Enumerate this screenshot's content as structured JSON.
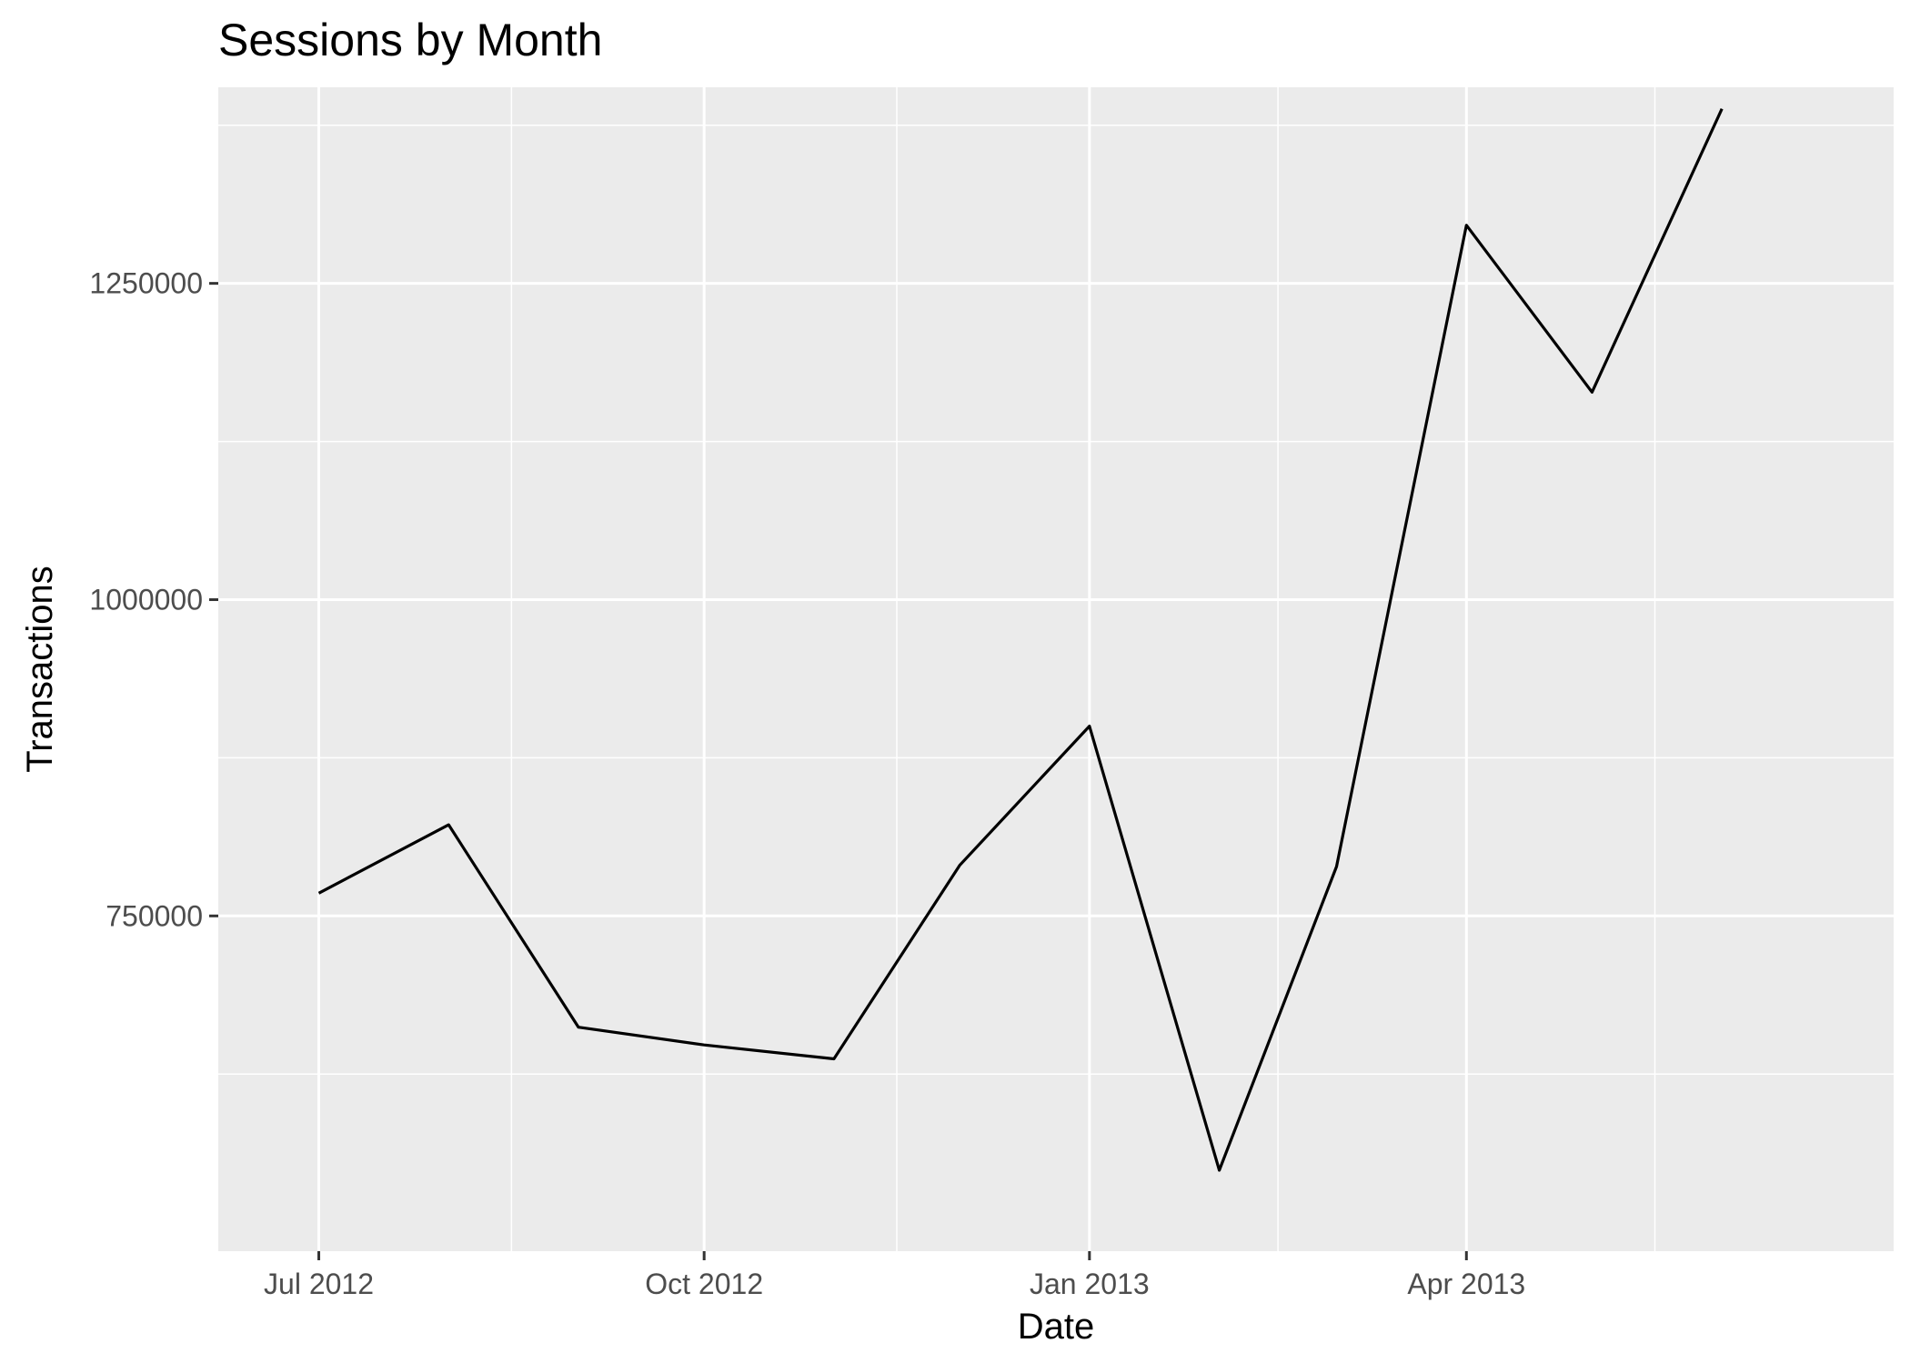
{
  "chart_data": {
    "type": "line",
    "title": "Sessions by Month",
    "xlabel": "Date",
    "ylabel": "Transactions",
    "x_ticks": [
      {
        "date": "2012-07-01",
        "label": "Jul 2012"
      },
      {
        "date": "2012-10-01",
        "label": "Oct 2012"
      },
      {
        "date": "2013-01-01",
        "label": "Jan 2013"
      },
      {
        "date": "2013-04-01",
        "label": "Apr 2013"
      }
    ],
    "y_ticks": [
      750000,
      1000000,
      1250000
    ],
    "xlim": [
      "2012-06-07",
      "2013-07-12"
    ],
    "ylim": [
      485000,
      1405000
    ],
    "grid": true,
    "panel_background": "#ebebeb",
    "grid_color": "#ffffff",
    "line_color": "#000000",
    "series": [
      {
        "x": [
          "2012-07-01",
          "2012-08-01",
          "2012-09-01",
          "2012-10-01",
          "2012-11-01",
          "2012-12-01",
          "2013-01-01",
          "2013-02-01",
          "2013-03-01",
          "2013-04-01",
          "2013-05-01",
          "2013-06-01"
        ],
        "values": [
          768000,
          822000,
          662000,
          648000,
          637000,
          790000,
          900000,
          549000,
          789000,
          1296000,
          1164000,
          1388000
        ]
      }
    ]
  }
}
